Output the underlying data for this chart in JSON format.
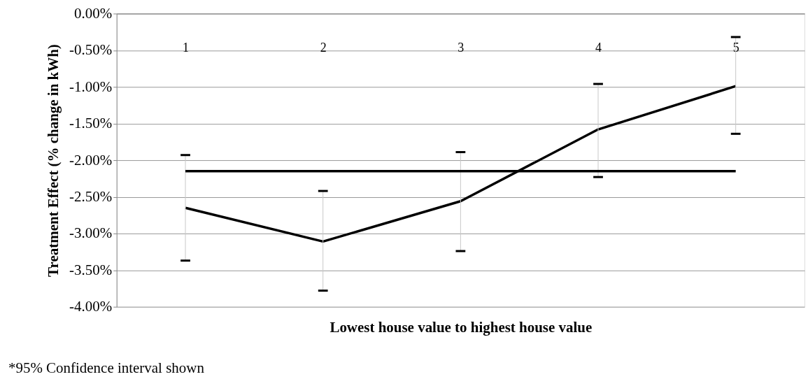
{
  "chart_data": {
    "type": "line",
    "ylabel": "Treatment Effect (% change in kWh)",
    "xlabel": "Lowest house value to  highest house value",
    "annotations": [
      "*95% Confidence interval shown"
    ],
    "categories": [
      "1",
      "2",
      "3",
      "4",
      "5"
    ],
    "series": [
      {
        "color": "#000000",
        "values": [
          -2.65,
          -3.11,
          -2.56,
          -1.58,
          -0.99
        ],
        "errors": [
          [
            -3.37,
            -1.93
          ],
          [
            -3.78,
            -2.42
          ],
          [
            -3.24,
            -1.89
          ],
          [
            -2.23,
            -0.96
          ],
          [
            -1.64,
            -0.32
          ]
        ]
      },
      {
        "color": "#000000",
        "values": [
          -2.15,
          -2.15,
          -2.15,
          -2.15,
          -2.15
        ]
      }
    ],
    "ylim": [
      -4,
      0
    ],
    "yticks": [
      {
        "value": 0,
        "label": "0.00%"
      },
      {
        "value": -0.5,
        "label": "-0.50%"
      },
      {
        "value": -1,
        "label": "-1.00%"
      },
      {
        "value": -1.5,
        "label": "-1.50%"
      },
      {
        "value": -2,
        "label": "-2.00%"
      },
      {
        "value": -2.5,
        "label": "-2.50%"
      },
      {
        "value": -3,
        "label": "-3.00%"
      },
      {
        "value": -3.5,
        "label": "-3.50%"
      },
      {
        "value": -4,
        "label": "-4.00%"
      }
    ],
    "grid": "y",
    "marker": "none",
    "line_style": "solid"
  }
}
